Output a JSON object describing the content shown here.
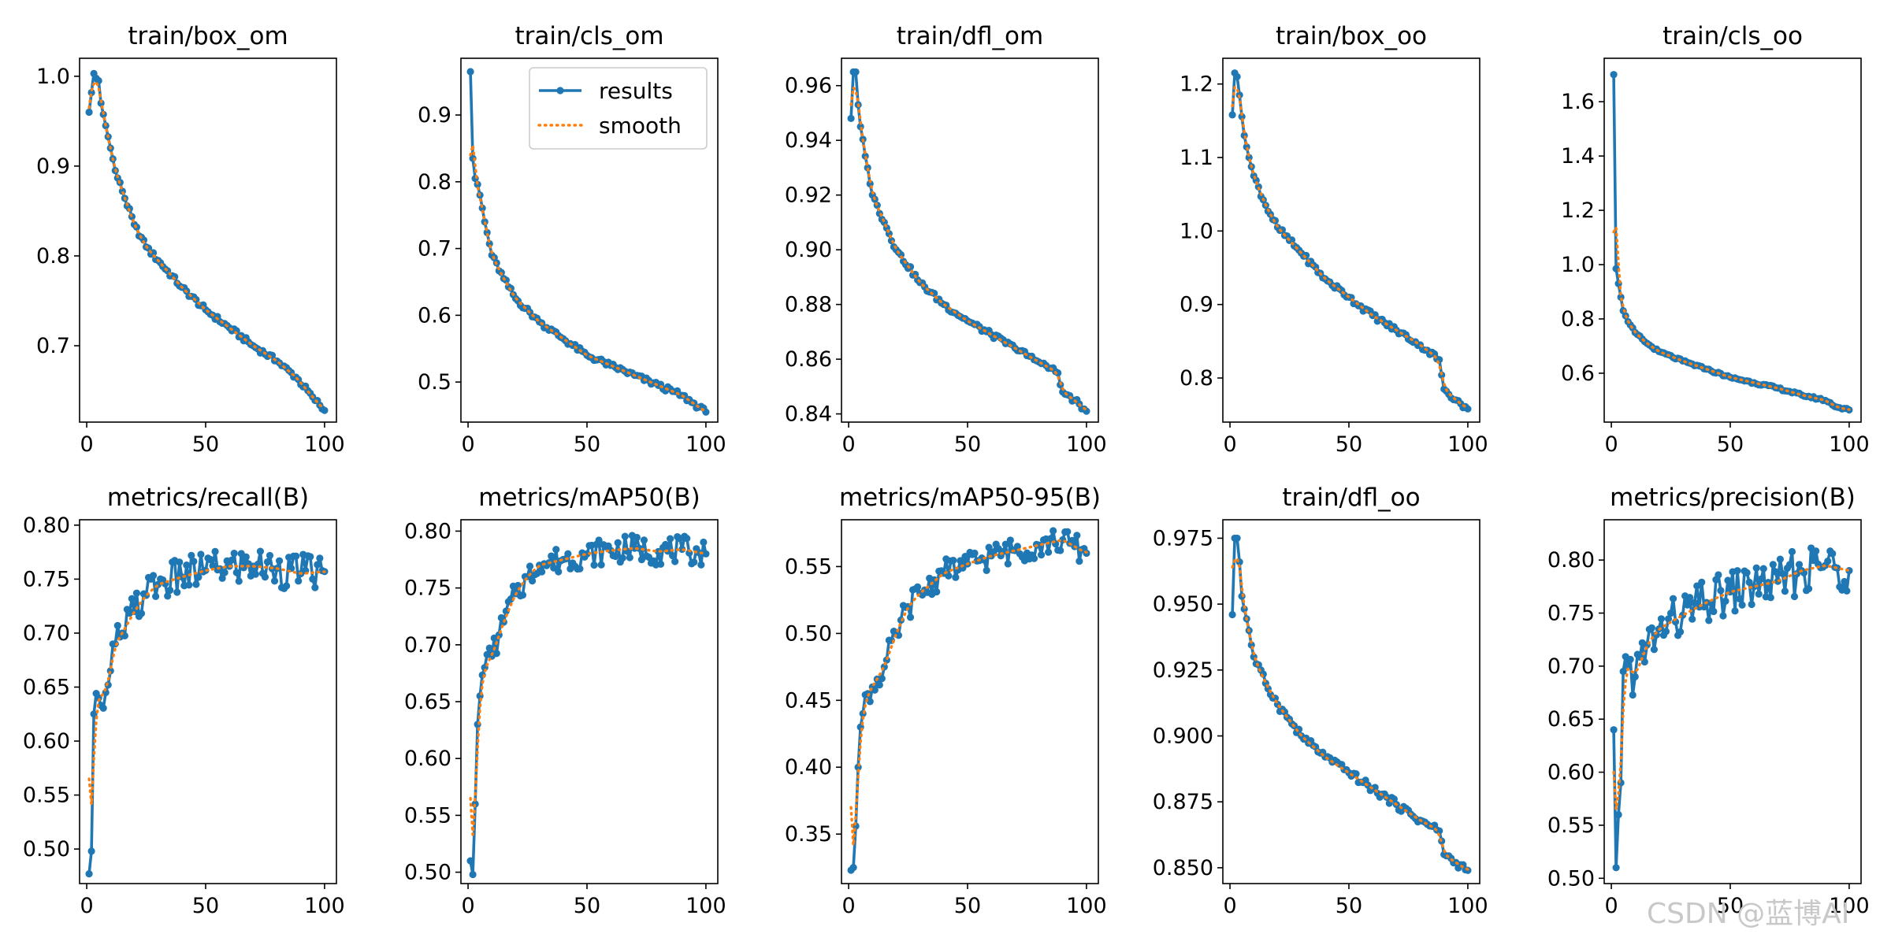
{
  "colors": {
    "results": "#1f77b4",
    "smooth": "#ff7f0e",
    "watermark": "#c8c8c8"
  },
  "legend": {
    "results_label": "results",
    "smooth_label": "smooth"
  },
  "watermark": {
    "text": "CSDN @蓝博AI"
  },
  "chart_data": [
    {
      "type": "line",
      "title": "train/box_om",
      "xlim": [
        -3,
        105
      ],
      "ylim": [
        0.615,
        1.02
      ],
      "xticks": [
        0,
        50,
        100
      ],
      "xtick_labels": [
        "0",
        "50",
        "100"
      ],
      "yticks": [
        0.7,
        0.8,
        0.9,
        1.0
      ],
      "ytick_labels": [
        "0.7",
        "0.8",
        "0.9",
        "1.0"
      ],
      "legend": false,
      "anchors": [
        [
          1,
          0.96
        ],
        [
          3,
          1.003
        ],
        [
          5,
          0.995
        ],
        [
          6,
          0.97
        ],
        [
          8,
          0.945
        ],
        [
          10,
          0.92
        ],
        [
          12,
          0.895
        ],
        [
          15,
          0.872
        ],
        [
          20,
          0.835
        ],
        [
          25,
          0.81
        ],
        [
          30,
          0.795
        ],
        [
          40,
          0.765
        ],
        [
          50,
          0.74
        ],
        [
          60,
          0.72
        ],
        [
          70,
          0.7
        ],
        [
          80,
          0.683
        ],
        [
          88,
          0.665
        ],
        [
          95,
          0.643
        ],
        [
          100,
          0.628
        ]
      ],
      "noise": 0.003,
      "smooth_start": 0.965
    },
    {
      "type": "line",
      "title": "train/cls_om",
      "xlim": [
        -3,
        105
      ],
      "ylim": [
        0.44,
        0.985
      ],
      "xticks": [
        0,
        50,
        100
      ],
      "xtick_labels": [
        "0",
        "50",
        "100"
      ],
      "yticks": [
        0.5,
        0.6,
        0.7,
        0.8,
        0.9
      ],
      "ytick_labels": [
        "0.5",
        "0.6",
        "0.7",
        "0.8",
        "0.9"
      ],
      "legend": true,
      "anchors": [
        [
          1,
          0.965
        ],
        [
          2,
          0.835
        ],
        [
          3,
          0.805
        ],
        [
          5,
          0.78
        ],
        [
          7,
          0.74
        ],
        [
          10,
          0.69
        ],
        [
          15,
          0.655
        ],
        [
          20,
          0.625
        ],
        [
          30,
          0.59
        ],
        [
          40,
          0.565
        ],
        [
          50,
          0.54
        ],
        [
          60,
          0.525
        ],
        [
          70,
          0.51
        ],
        [
          80,
          0.495
        ],
        [
          90,
          0.48
        ],
        [
          100,
          0.455
        ]
      ],
      "noise": 0.004,
      "smooth_start": 0.84
    },
    {
      "type": "line",
      "title": "train/dfl_om",
      "xlim": [
        -3,
        105
      ],
      "ylim": [
        0.837,
        0.97
      ],
      "xticks": [
        0,
        50,
        100
      ],
      "xtick_labels": [
        "0",
        "50",
        "100"
      ],
      "yticks": [
        0.84,
        0.86,
        0.88,
        0.9,
        0.92,
        0.94,
        0.96
      ],
      "ytick_labels": [
        "0.84",
        "0.86",
        "0.88",
        "0.90",
        "0.92",
        "0.94",
        "0.96"
      ],
      "legend": false,
      "anchors": [
        [
          1,
          0.948
        ],
        [
          2,
          0.965
        ],
        [
          3,
          0.965
        ],
        [
          4,
          0.953
        ],
        [
          5,
          0.945
        ],
        [
          8,
          0.93
        ],
        [
          10,
          0.92
        ],
        [
          15,
          0.91
        ],
        [
          20,
          0.9
        ],
        [
          30,
          0.888
        ],
        [
          40,
          0.88
        ],
        [
          50,
          0.874
        ],
        [
          60,
          0.869
        ],
        [
          70,
          0.864
        ],
        [
          80,
          0.859
        ],
        [
          88,
          0.855
        ],
        [
          90,
          0.848
        ],
        [
          95,
          0.845
        ],
        [
          100,
          0.841
        ]
      ],
      "noise": 0.001,
      "smooth_start": 0.953
    },
    {
      "type": "line",
      "title": "train/box_oo",
      "xlim": [
        -3,
        105
      ],
      "ylim": [
        0.74,
        1.235
      ],
      "xticks": [
        0,
        50,
        100
      ],
      "xtick_labels": [
        "0",
        "50",
        "100"
      ],
      "yticks": [
        0.8,
        0.9,
        1.0,
        1.1,
        1.2
      ],
      "ytick_labels": [
        "0.8",
        "0.9",
        "1.0",
        "1.1",
        "1.2"
      ],
      "legend": false,
      "anchors": [
        [
          1,
          1.158
        ],
        [
          2,
          1.215
        ],
        [
          3,
          1.21
        ],
        [
          4,
          1.185
        ],
        [
          6,
          1.13
        ],
        [
          8,
          1.1
        ],
        [
          10,
          1.075
        ],
        [
          15,
          1.035
        ],
        [
          20,
          1.005
        ],
        [
          30,
          0.97
        ],
        [
          40,
          0.935
        ],
        [
          50,
          0.91
        ],
        [
          60,
          0.885
        ],
        [
          70,
          0.865
        ],
        [
          80,
          0.845
        ],
        [
          88,
          0.825
        ],
        [
          90,
          0.785
        ],
        [
          95,
          0.77
        ],
        [
          100,
          0.758
        ]
      ],
      "noise": 0.004,
      "smooth_start": 1.17
    },
    {
      "type": "line",
      "title": "train/cls_oo",
      "xlim": [
        -3,
        105
      ],
      "ylim": [
        0.42,
        1.76
      ],
      "xticks": [
        0,
        50,
        100
      ],
      "xtick_labels": [
        "0",
        "50",
        "100"
      ],
      "yticks": [
        0.6,
        0.8,
        1.0,
        1.2,
        1.4,
        1.6
      ],
      "ytick_labels": [
        "0.6",
        "0.8",
        "1.0",
        "1.2",
        "1.4",
        "1.6"
      ],
      "legend": false,
      "anchors": [
        [
          1,
          1.7
        ],
        [
          2,
          0.985
        ],
        [
          3,
          0.93
        ],
        [
          4,
          0.88
        ],
        [
          5,
          0.83
        ],
        [
          7,
          0.79
        ],
        [
          10,
          0.75
        ],
        [
          15,
          0.71
        ],
        [
          20,
          0.68
        ],
        [
          30,
          0.645
        ],
        [
          40,
          0.615
        ],
        [
          50,
          0.585
        ],
        [
          60,
          0.565
        ],
        [
          70,
          0.545
        ],
        [
          80,
          0.52
        ],
        [
          90,
          0.5
        ],
        [
          95,
          0.475
        ],
        [
          100,
          0.465
        ]
      ],
      "noise": 0.004,
      "smooth_start": 1.12
    },
    {
      "type": "line",
      "title": "metrics/recall(B)",
      "xlim": [
        -3,
        105
      ],
      "ylim": [
        0.468,
        0.805
      ],
      "xticks": [
        0,
        50,
        100
      ],
      "xtick_labels": [
        "0",
        "50",
        "100"
      ],
      "yticks": [
        0.5,
        0.55,
        0.6,
        0.65,
        0.7,
        0.75,
        0.8
      ],
      "ytick_labels": [
        "0.50",
        "0.55",
        "0.60",
        "0.65",
        "0.70",
        "0.75",
        "0.80"
      ],
      "legend": false,
      "anchors": [
        [
          1,
          0.477
        ],
        [
          2,
          0.498
        ],
        [
          3,
          0.625
        ],
        [
          5,
          0.64
        ],
        [
          8,
          0.645
        ],
        [
          10,
          0.665
        ],
        [
          12,
          0.69
        ],
        [
          15,
          0.7
        ],
        [
          20,
          0.72
        ],
        [
          25,
          0.735
        ],
        [
          30,
          0.745
        ],
        [
          40,
          0.752
        ],
        [
          50,
          0.758
        ],
        [
          60,
          0.762
        ],
        [
          70,
          0.762
        ],
        [
          80,
          0.76
        ],
        [
          90,
          0.755
        ],
        [
          100,
          0.757
        ]
      ],
      "noise": 0.018,
      "smooth_start": 0.565
    },
    {
      "type": "line",
      "title": "metrics/mAP50(B)",
      "xlim": [
        -3,
        105
      ],
      "ylim": [
        0.49,
        0.81
      ],
      "xticks": [
        0,
        50,
        100
      ],
      "xtick_labels": [
        "0",
        "50",
        "100"
      ],
      "yticks": [
        0.5,
        0.55,
        0.6,
        0.65,
        0.7,
        0.75,
        0.8
      ],
      "ytick_labels": [
        "0.50",
        "0.55",
        "0.60",
        "0.65",
        "0.70",
        "0.75",
        "0.80"
      ],
      "legend": false,
      "anchors": [
        [
          1,
          0.51
        ],
        [
          2,
          0.498
        ],
        [
          3,
          0.56
        ],
        [
          4,
          0.63
        ],
        [
          5,
          0.655
        ],
        [
          7,
          0.68
        ],
        [
          10,
          0.69
        ],
        [
          15,
          0.72
        ],
        [
          20,
          0.745
        ],
        [
          25,
          0.76
        ],
        [
          30,
          0.77
        ],
        [
          40,
          0.775
        ],
        [
          50,
          0.78
        ],
        [
          60,
          0.783
        ],
        [
          70,
          0.785
        ],
        [
          80,
          0.782
        ],
        [
          90,
          0.784
        ],
        [
          100,
          0.78
        ]
      ],
      "noise": 0.012,
      "smooth_start": 0.565
    },
    {
      "type": "line",
      "title": "metrics/mAP50-95(B)",
      "xlim": [
        -3,
        105
      ],
      "ylim": [
        0.313,
        0.585
      ],
      "xticks": [
        0,
        50,
        100
      ],
      "xtick_labels": [
        "0",
        "50",
        "100"
      ],
      "yticks": [
        0.35,
        0.4,
        0.45,
        0.5,
        0.55
      ],
      "ytick_labels": [
        "0.35",
        "0.40",
        "0.45",
        "0.50",
        "0.55"
      ],
      "legend": false,
      "anchors": [
        [
          1,
          0.323
        ],
        [
          2,
          0.325
        ],
        [
          3,
          0.356
        ],
        [
          4,
          0.4
        ],
        [
          5,
          0.43
        ],
        [
          8,
          0.455
        ],
        [
          10,
          0.46
        ],
        [
          15,
          0.475
        ],
        [
          20,
          0.5
        ],
        [
          25,
          0.52
        ],
        [
          30,
          0.53
        ],
        [
          40,
          0.545
        ],
        [
          50,
          0.552
        ],
        [
          60,
          0.558
        ],
        [
          70,
          0.562
        ],
        [
          80,
          0.566
        ],
        [
          90,
          0.57
        ],
        [
          95,
          0.565
        ],
        [
          100,
          0.56
        ]
      ],
      "noise": 0.01,
      "smooth_start": 0.37
    },
    {
      "type": "line",
      "title": "train/dfl_oo",
      "xlim": [
        -3,
        105
      ],
      "ylim": [
        0.844,
        0.982
      ],
      "xticks": [
        0,
        50,
        100
      ],
      "xtick_labels": [
        "0",
        "50",
        "100"
      ],
      "yticks": [
        0.85,
        0.875,
        0.9,
        0.925,
        0.95,
        0.975
      ],
      "ytick_labels": [
        "0.850",
        "0.875",
        "0.900",
        "0.925",
        "0.950",
        "0.975"
      ],
      "legend": false,
      "anchors": [
        [
          1,
          0.946
        ],
        [
          2,
          0.975
        ],
        [
          3,
          0.975
        ],
        [
          4,
          0.966
        ],
        [
          5,
          0.953
        ],
        [
          8,
          0.94
        ],
        [
          10,
          0.93
        ],
        [
          15,
          0.92
        ],
        [
          20,
          0.912
        ],
        [
          30,
          0.9
        ],
        [
          40,
          0.892
        ],
        [
          50,
          0.886
        ],
        [
          60,
          0.88
        ],
        [
          70,
          0.874
        ],
        [
          80,
          0.868
        ],
        [
          88,
          0.864
        ],
        [
          90,
          0.855
        ],
        [
          95,
          0.852
        ],
        [
          100,
          0.849
        ]
      ],
      "noise": 0.0015,
      "smooth_start": 0.964
    },
    {
      "type": "line",
      "title": "metrics/precision(B)",
      "xlim": [
        -3,
        105
      ],
      "ylim": [
        0.495,
        0.838
      ],
      "xticks": [
        0,
        50,
        100
      ],
      "xtick_labels": [
        "0",
        "50",
        "100"
      ],
      "yticks": [
        0.5,
        0.55,
        0.6,
        0.65,
        0.7,
        0.75,
        0.8
      ],
      "ytick_labels": [
        "0.50",
        "0.55",
        "0.60",
        "0.65",
        "0.70",
        "0.75",
        "0.80"
      ],
      "legend": false,
      "anchors": [
        [
          1,
          0.64
        ],
        [
          2,
          0.51
        ],
        [
          3,
          0.56
        ],
        [
          4,
          0.59
        ],
        [
          5,
          0.695
        ],
        [
          7,
          0.7
        ],
        [
          10,
          0.69
        ],
        [
          15,
          0.72
        ],
        [
          20,
          0.735
        ],
        [
          30,
          0.748
        ],
        [
          40,
          0.76
        ],
        [
          50,
          0.77
        ],
        [
          60,
          0.775
        ],
        [
          70,
          0.78
        ],
        [
          80,
          0.79
        ],
        [
          90,
          0.795
        ],
        [
          100,
          0.79
        ]
      ],
      "noise": 0.022,
      "smooth_start": 0.6
    }
  ]
}
